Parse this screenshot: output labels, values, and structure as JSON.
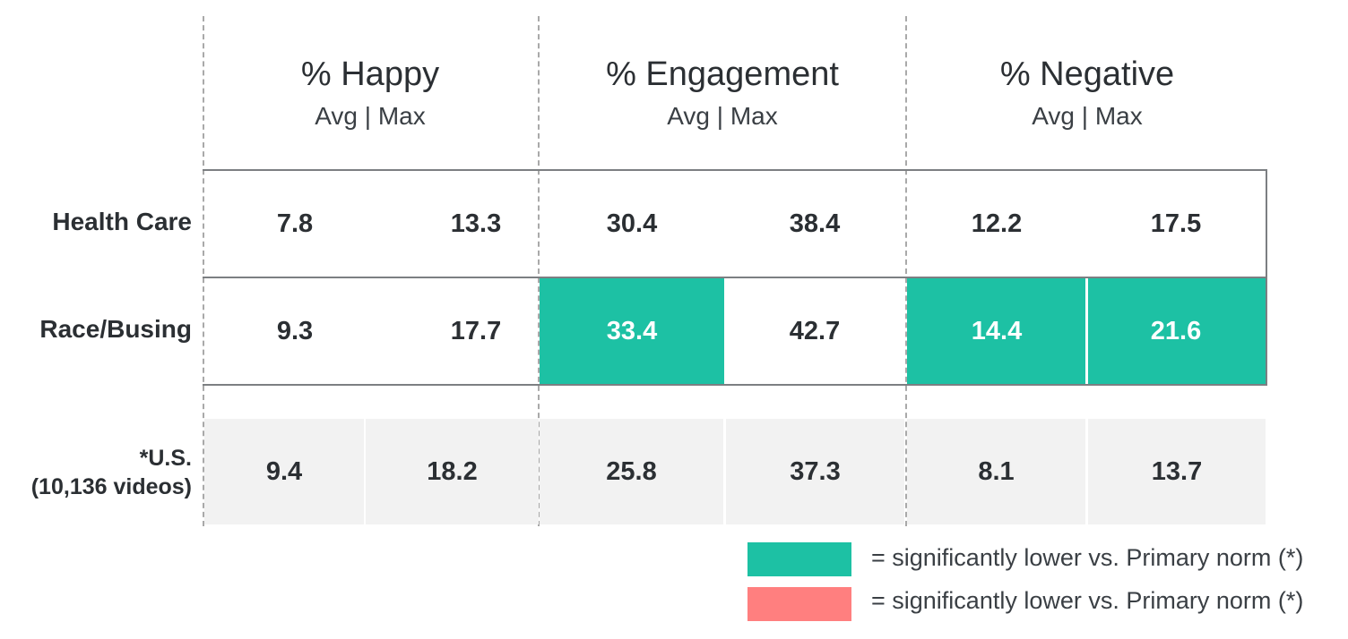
{
  "chart_data": {
    "type": "table",
    "column_groups": [
      {
        "title": "% Happy",
        "sub": "Avg | Max"
      },
      {
        "title": "% Engagement",
        "sub": "Avg | Max"
      },
      {
        "title": "% Negative",
        "sub": "Avg | Max"
      }
    ],
    "rows": [
      {
        "label": "Health Care",
        "values": [
          "7.8",
          "13.3",
          "30.4",
          "38.4",
          "12.2",
          "17.5"
        ],
        "highlight": [
          false,
          false,
          false,
          false,
          false,
          false
        ]
      },
      {
        "label": "Race/Busing",
        "values": [
          "9.3",
          "17.7",
          "33.4",
          "42.7",
          "14.4",
          "21.6"
        ],
        "highlight": [
          false,
          false,
          true,
          false,
          true,
          true
        ]
      }
    ],
    "norm_row": {
      "label_line1": "*U.S.",
      "label_line2": "(10,136 videos)",
      "values": [
        "9.4",
        "18.2",
        "25.8",
        "37.3",
        "8.1",
        "13.7"
      ]
    },
    "legend": [
      {
        "color": "#1dc1a4",
        "text": "= significantly lower vs. Primary norm (*)"
      },
      {
        "color": "#ff7f7f",
        "text": "= significantly lower vs. Primary norm (*)"
      }
    ]
  }
}
